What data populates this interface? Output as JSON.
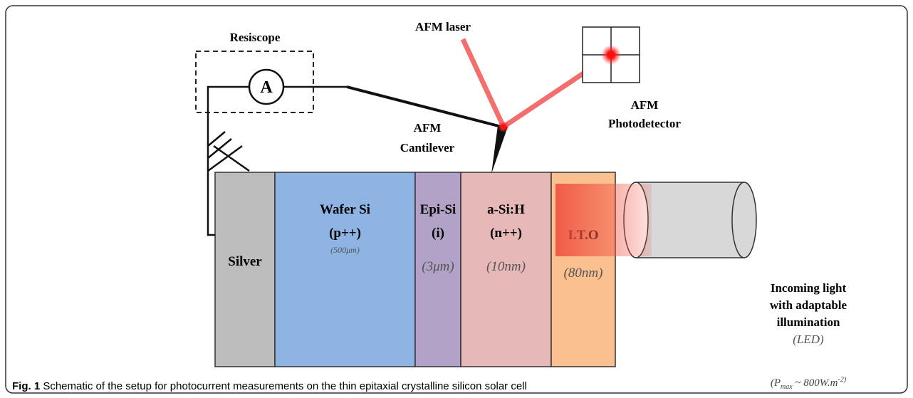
{
  "labels": {
    "resiscope": "Resiscope",
    "ammeter": "A",
    "afm_laser": "AFM laser",
    "photodetector": [
      "AFM",
      "Photodetector"
    ],
    "cantilever": [
      "AFM",
      "Cantilever"
    ]
  },
  "layers": [
    {
      "name": "Silver",
      "lines": []
    },
    {
      "name": "Wafer Si",
      "lines": [
        "(p++)",
        "(500μm)"
      ]
    },
    {
      "name": "Epi-Si",
      "lines": [
        "(i)",
        "(3μm)"
      ]
    },
    {
      "name": "a-Si:H",
      "lines": [
        "(n++)",
        "(10nm)"
      ]
    },
    {
      "name": "I.T.O",
      "lines": [
        "(80nm)"
      ]
    }
  ],
  "light": {
    "lines": [
      "Incoming light",
      "with adaptable",
      "illumination",
      "(LED)"
    ],
    "power": {
      "open": "(P",
      "sub": "max",
      "mid": " ~ 800W.m",
      "sup": "-2)"
    }
  },
  "caption": {
    "label": "Fig. 1",
    "text": " Schematic of the setup for photocurrent measurements on the thin epitaxial crystalline silicon solar cell"
  }
}
